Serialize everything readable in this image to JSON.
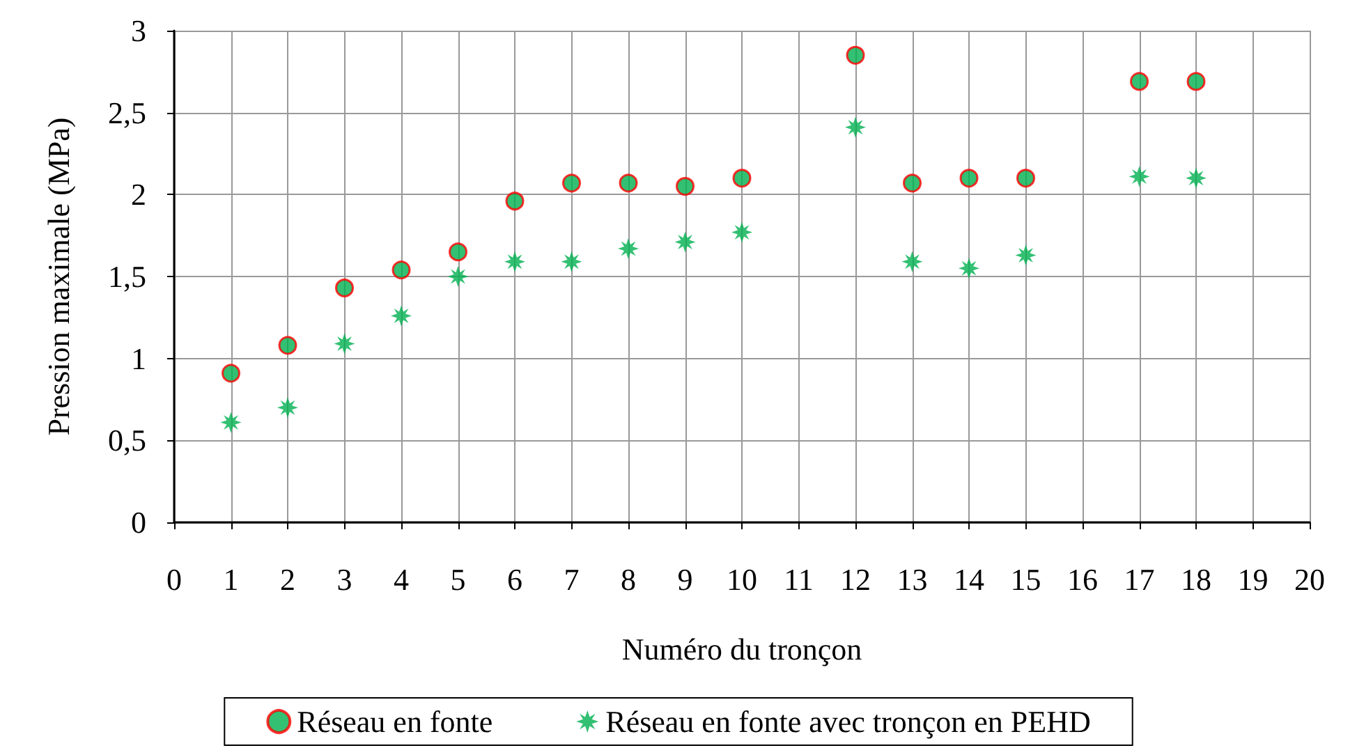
{
  "chart_data": {
    "type": "scatter",
    "xlabel": "Numéro du tronçon",
    "ylabel": "Pression maximale (MPa)",
    "xlim": [
      0,
      20
    ],
    "xticks": [
      0,
      1,
      2,
      3,
      4,
      5,
      6,
      7,
      8,
      9,
      10,
      11,
      12,
      13,
      14,
      15,
      16,
      17,
      18,
      19,
      20
    ],
    "ylim": [
      0,
      3
    ],
    "yticks": [
      {
        "value": 0,
        "label": "0"
      },
      {
        "value": 0.5,
        "label": "0,5"
      },
      {
        "value": 1,
        "label": "1"
      },
      {
        "value": 1.5,
        "label": "1,5"
      },
      {
        "value": 2,
        "label": "2"
      },
      {
        "value": 2.5,
        "label": "2,5"
      },
      {
        "value": 3,
        "label": "3"
      }
    ],
    "grid": true,
    "legend": "bottom",
    "x": [
      1,
      2,
      3,
      4,
      5,
      6,
      7,
      8,
      9,
      10,
      12,
      13,
      14,
      15,
      17,
      18
    ],
    "series": [
      {
        "name": "Réseau en fonte",
        "color": "#ff0000",
        "marker": "circle",
        "values": [
          0.91,
          1.08,
          1.43,
          1.54,
          1.65,
          1.96,
          2.07,
          2.07,
          2.05,
          2.1,
          2.85,
          2.07,
          2.1,
          2.1,
          2.69,
          2.69
        ]
      },
      {
        "name": "Réseau en fonte avec tronçon en PEHD",
        "color": "#00b050",
        "marker": "star",
        "values": [
          0.61,
          0.7,
          1.09,
          1.26,
          1.5,
          1.59,
          1.59,
          1.67,
          1.71,
          1.77,
          2.41,
          1.59,
          1.55,
          1.63,
          2.11,
          2.1
        ]
      }
    ]
  }
}
